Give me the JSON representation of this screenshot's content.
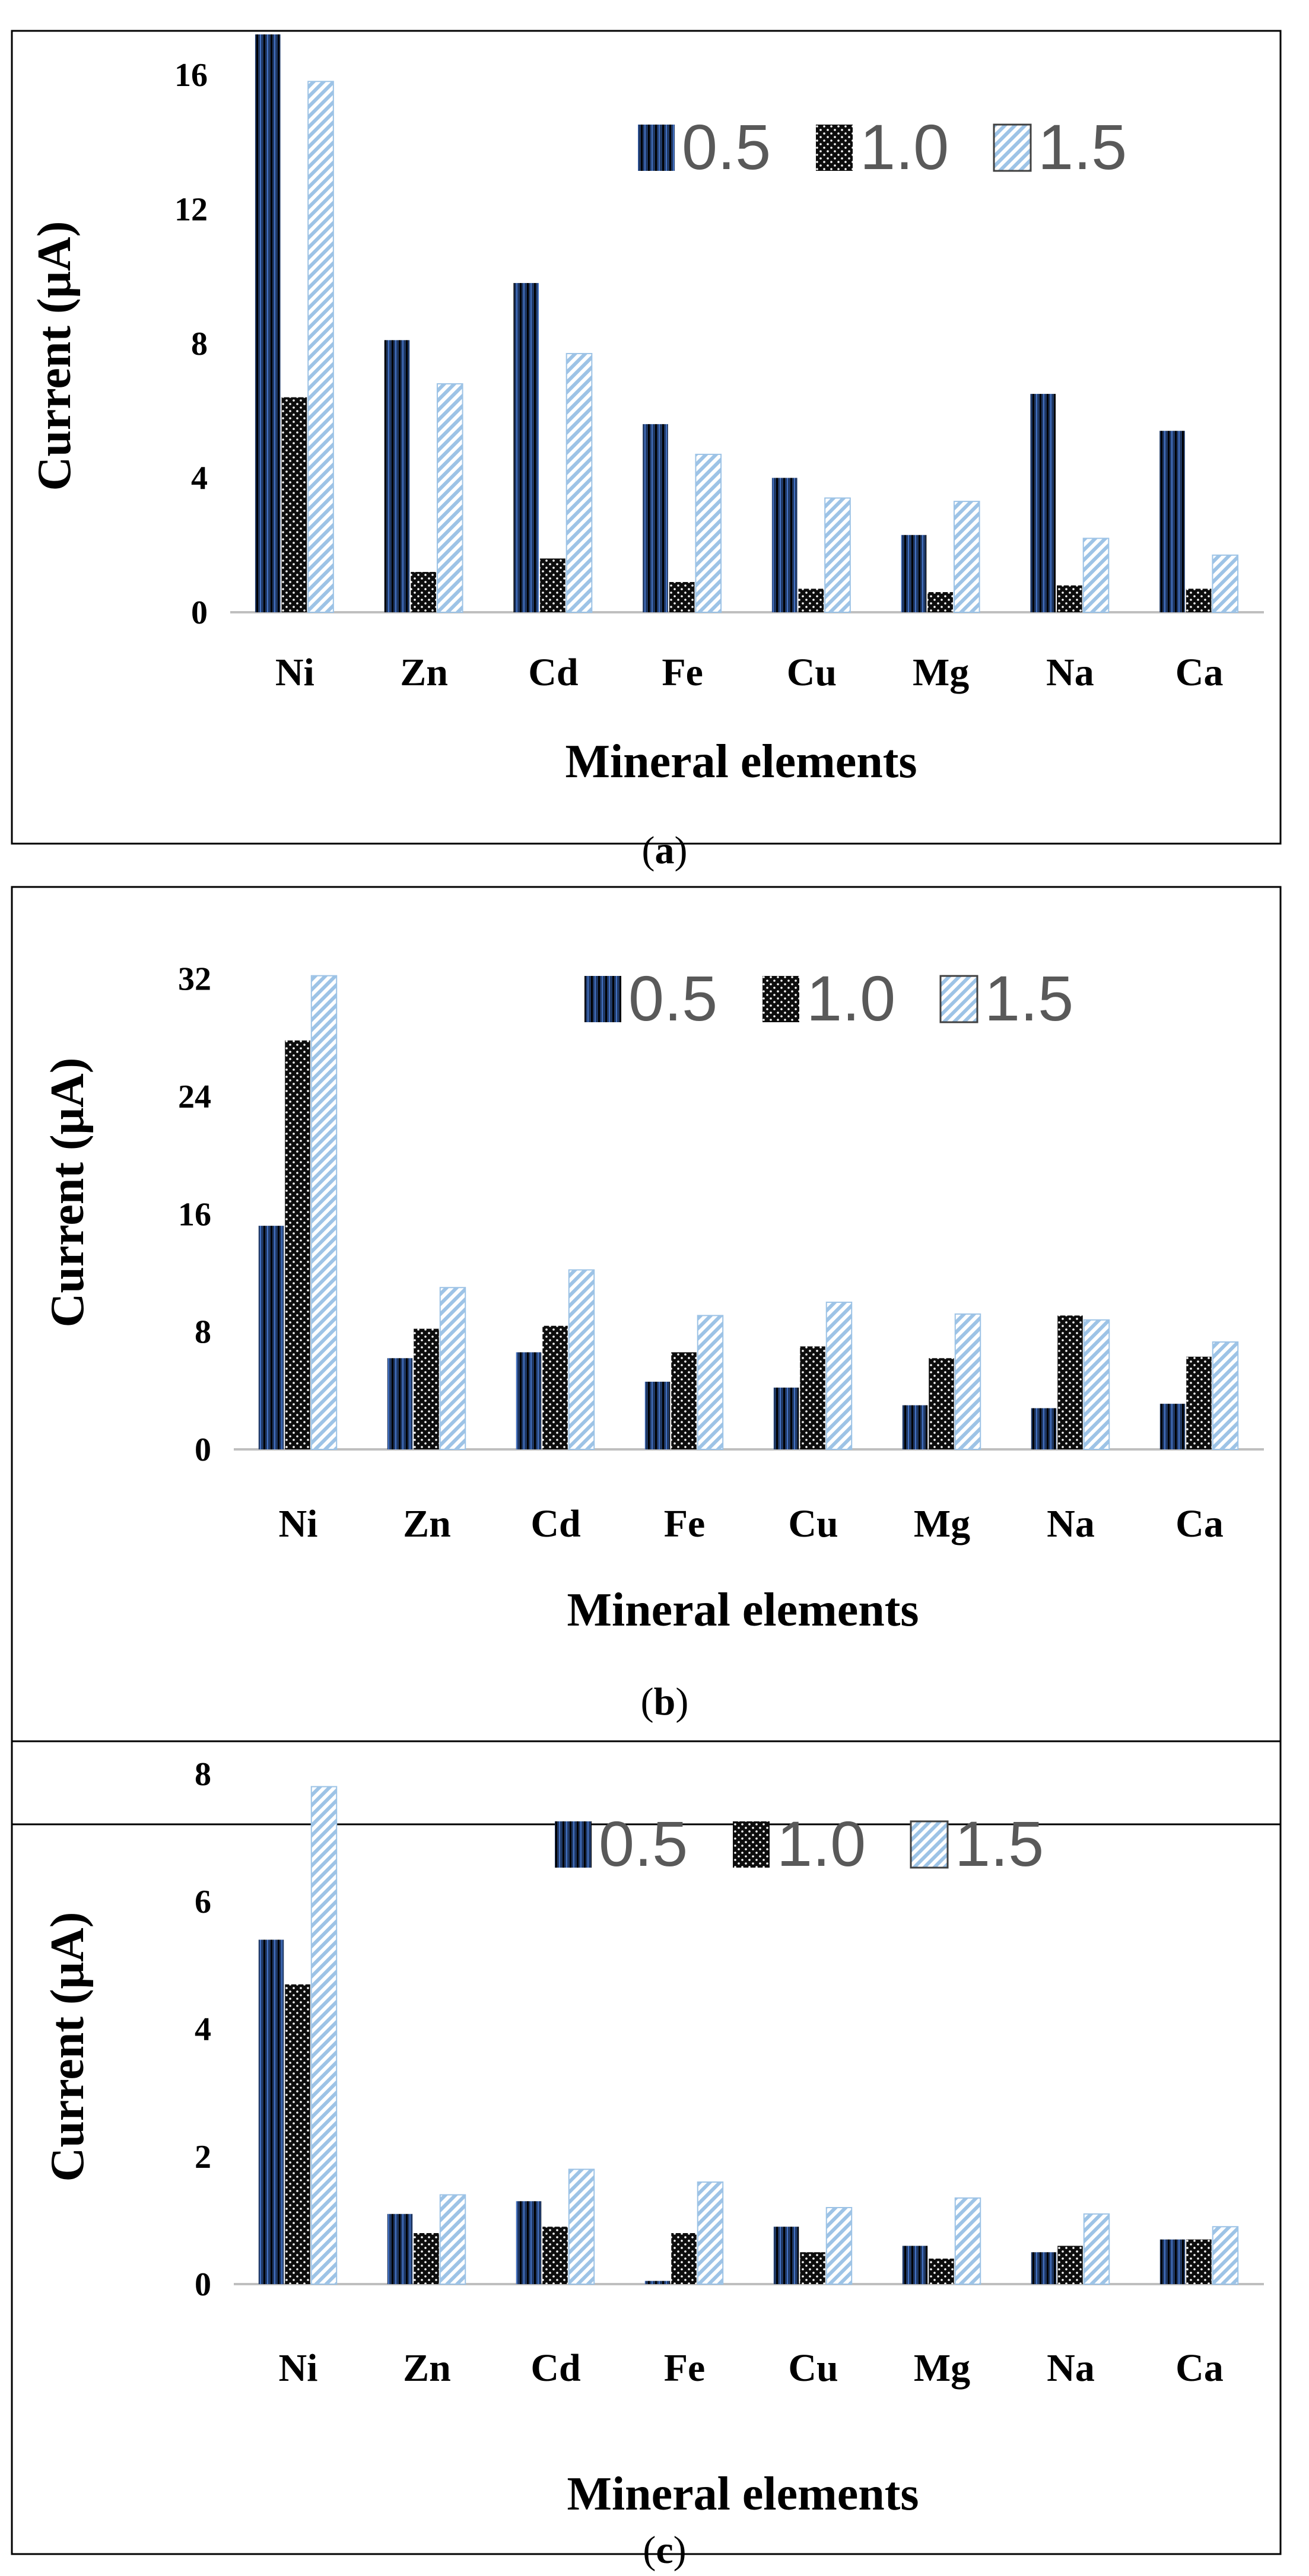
{
  "legend_colors": {
    "s05": "#1f3864",
    "s10": "#0d0d0d",
    "s15": "#bdd7ee"
  },
  "chart_data": [
    {
      "type": "bar",
      "panel_label": "a",
      "categories": [
        "Ni",
        "Zn",
        "Cd",
        "Fe",
        "Cu",
        "Mg",
        "Na",
        "Ca"
      ],
      "series": [
        {
          "name": "0.5",
          "values": [
            17.2,
            8.1,
            9.8,
            5.6,
            4.0,
            2.3,
            6.5,
            5.4
          ]
        },
        {
          "name": "1.0",
          "values": [
            6.4,
            1.2,
            1.6,
            0.9,
            0.7,
            0.6,
            0.8,
            0.7
          ]
        },
        {
          "name": "1.5",
          "values": [
            15.8,
            6.8,
            7.7,
            4.7,
            3.4,
            3.3,
            2.2,
            1.7
          ]
        }
      ],
      "yticks": [
        "0",
        "4",
        "8",
        "12",
        "16"
      ],
      "ylim": [
        0,
        17.2
      ],
      "ylabel": "Current (μA)",
      "xlabel": "Mineral elements",
      "grid": false,
      "legend_position": "top-right"
    },
    {
      "type": "bar",
      "panel_label": "b",
      "categories": [
        "Ni",
        "Zn",
        "Cd",
        "Fe",
        "Cu",
        "Mg",
        "Na",
        "Ca"
      ],
      "series": [
        {
          "name": "0.5",
          "values": [
            15.2,
            6.2,
            6.6,
            4.6,
            4.2,
            3.0,
            2.8,
            3.1
          ]
        },
        {
          "name": "1.0",
          "values": [
            27.8,
            8.2,
            8.4,
            6.6,
            7.0,
            6.2,
            9.1,
            6.3
          ]
        },
        {
          "name": "1.5",
          "values": [
            32.2,
            11.0,
            12.2,
            9.1,
            10.0,
            9.2,
            8.8,
            7.3
          ]
        }
      ],
      "yticks": [
        "0",
        "8",
        "16",
        "24",
        "32"
      ],
      "ylim": [
        0,
        34
      ],
      "ylabel": "Current (μA)",
      "xlabel": "Mineral elements",
      "grid": false,
      "legend_position": "top-right"
    },
    {
      "type": "bar",
      "panel_label": "c",
      "categories": [
        "Ni",
        "Zn",
        "Cd",
        "Fe",
        "Cu",
        "Mg",
        "Na",
        "Ca"
      ],
      "series": [
        {
          "name": "0.5",
          "values": [
            5.4,
            1.1,
            1.3,
            0.05,
            0.9,
            0.6,
            0.5,
            0.7
          ]
        },
        {
          "name": "1.0",
          "values": [
            4.7,
            0.8,
            0.9,
            0.8,
            0.5,
            0.4,
            0.6,
            0.7
          ]
        },
        {
          "name": "1.5",
          "values": [
            7.8,
            1.4,
            1.8,
            1.6,
            1.2,
            1.35,
            1.1,
            0.9
          ]
        }
      ],
      "yticks": [
        "0",
        "2",
        "4",
        "6",
        "8"
      ],
      "ylim": [
        0,
        8
      ],
      "ylabel": "Current (μA)",
      "xlabel": "Mineral elements",
      "grid": false,
      "legend_position": "top-right"
    }
  ]
}
